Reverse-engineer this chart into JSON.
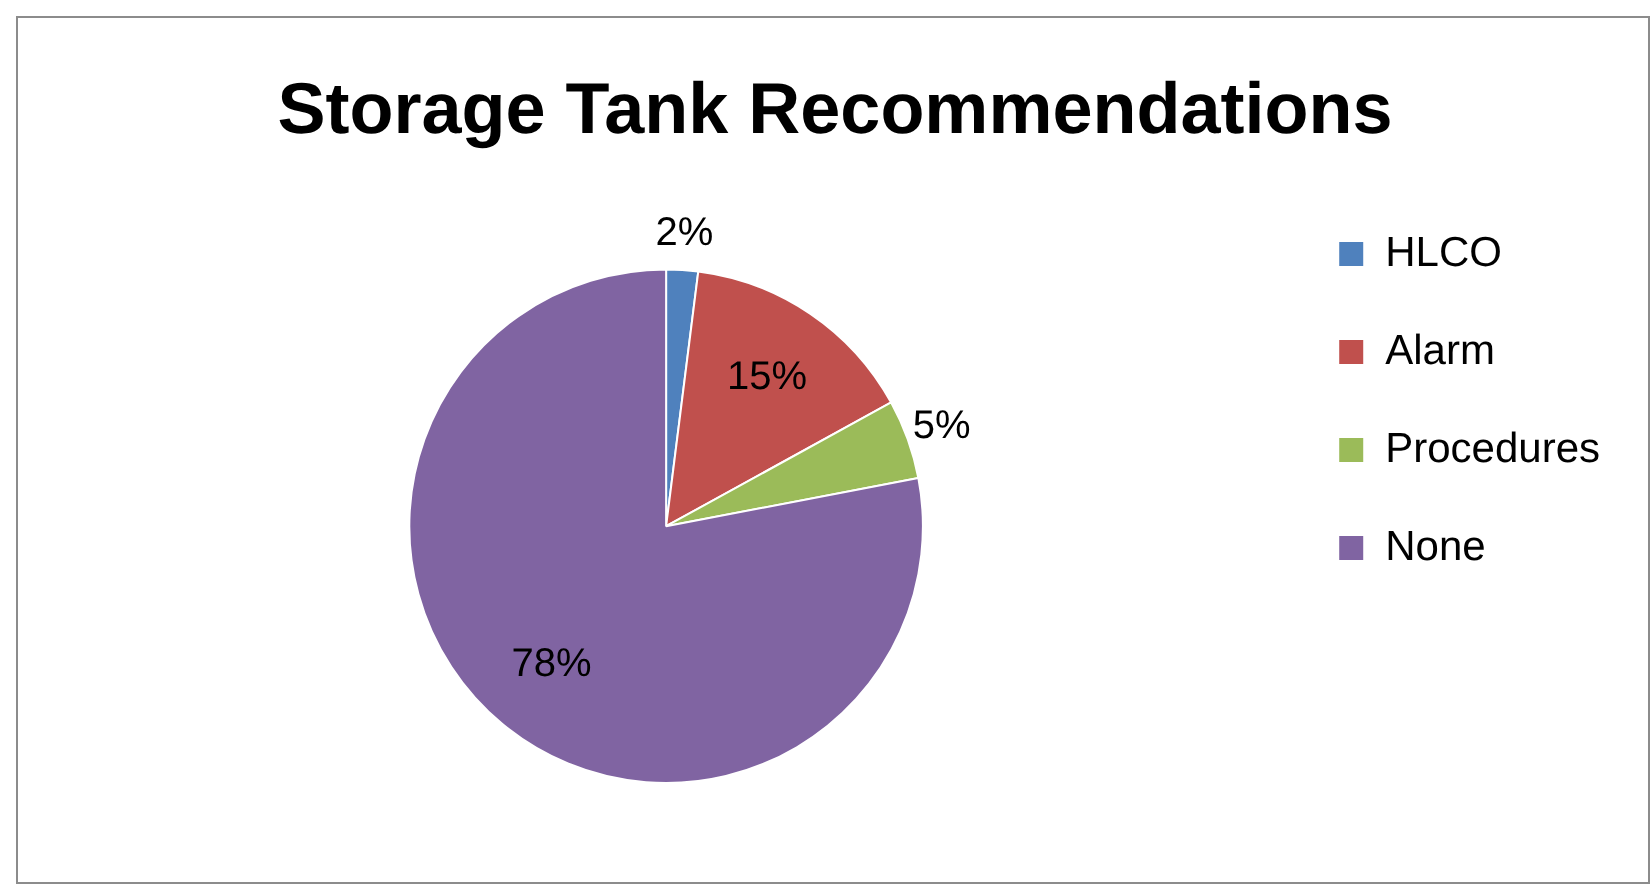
{
  "chart_data": {
    "type": "pie",
    "title": "Storage Tank Recommendations",
    "categories": [
      "HLCO",
      "Alarm",
      "Procedures",
      "None"
    ],
    "values": [
      2,
      15,
      5,
      78
    ],
    "colors": [
      "#4f81bd",
      "#c0504d",
      "#9bbb59",
      "#8064a2"
    ],
    "value_labels": [
      "2%",
      "15%",
      "5%",
      "78%"
    ],
    "legend": "right"
  }
}
